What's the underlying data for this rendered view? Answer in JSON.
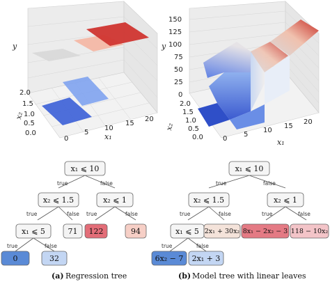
{
  "plot_left": {
    "ylabel": "y",
    "x1label": "x₁",
    "x2label": "x₂",
    "x1_ticks": [
      "0",
      "5",
      "10",
      "15",
      "20"
    ],
    "x2_ticks": [
      "0.0",
      "0.5",
      "1.0",
      "1.5",
      "2.0"
    ]
  },
  "plot_right": {
    "ylabel": "y",
    "x1label": "x₁",
    "x2label": "x₂",
    "y_ticks": [
      "0",
      "25",
      "50",
      "75",
      "100",
      "125",
      "150"
    ],
    "x1_ticks": [
      "0",
      "5",
      "10",
      "15",
      "20"
    ],
    "x2_ticks": [
      "0.0",
      "0.5",
      "1.0",
      "1.5",
      "2.0"
    ]
  },
  "tree_left": {
    "root": "x₁ ⩽ 10",
    "n2": "x₂ ⩽ 1.5",
    "n3": "x₂ ⩽ 1",
    "n4": "x₁ ⩽ 5",
    "leaf_71": "71",
    "leaf_122": "122",
    "leaf_94": "94",
    "leaf_0": "0",
    "leaf_32": "32",
    "true": "true",
    "false": "false",
    "caption_label": "(a)",
    "caption_text": " Regression tree",
    "colors": {
      "leaf_0": "#5a8ad6",
      "leaf_32": "#c3d6f3",
      "leaf_71": "#f3f3f3",
      "leaf_122": "#e36d78",
      "leaf_94": "#f6cfc6"
    }
  },
  "tree_right": {
    "root": "x₁ ⩽ 10",
    "n2": "x₂ ⩽ 1.5",
    "n3": "x₂ ⩽ 1",
    "n4": "x₁ ⩽ 5",
    "leaf_a": "2x₁ + 30x₂",
    "leaf_b": "8x₁ − 2x₂ − 3",
    "leaf_c": "118 − 10x₂",
    "leaf_d": "6x₂ − 7",
    "leaf_e": "2x₁ + 3",
    "true": "true",
    "false": "false",
    "caption_label": "(b)",
    "caption_text": "Model tree with linear leaves",
    "colors": {
      "leaf_a": "#f4e3da",
      "leaf_b": "#e47a84",
      "leaf_c": "#f3c4c8",
      "leaf_d": "#5a8ad6",
      "leaf_e": "#c3d6f3"
    }
  }
}
